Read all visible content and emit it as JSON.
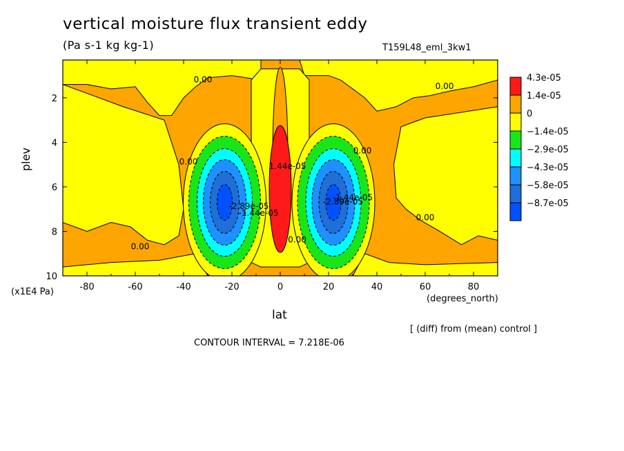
{
  "chart_data": {
    "type": "heatmap",
    "title": "vertical moisture flux transient eddy",
    "subtitle": "(Pa s-1 kg kg-1)",
    "run_label": "T159L48_eml_3kw1",
    "xlabel": "lat",
    "x_unit": "(degrees_north)",
    "ylabel": "plev",
    "y_unit": "(x1E4 Pa)",
    "xlim": [
      -90,
      90
    ],
    "ylim": [
      10,
      0.3
    ],
    "y_inverted": true,
    "x_ticks": [
      -80,
      -60,
      -40,
      -20,
      0,
      20,
      40,
      60,
      80
    ],
    "x_tick_labels": [
      "-80",
      "-60",
      "-40",
      "-20",
      "0",
      "20",
      "40",
      "60",
      "80"
    ],
    "y_ticks": [
      2,
      4,
      6,
      8,
      10
    ],
    "y_tick_labels": [
      "2",
      "4",
      "6",
      "8",
      "10"
    ],
    "contour_interval": 7.218e-06,
    "contour_interval_text": "CONTOUR INTERVAL = 7.218E-06",
    "note": "[ (diff) from (mean) control ]",
    "legend": {
      "placement": "right",
      "levels": [
        {
          "label": "4.3e-05",
          "value": 4.3e-05,
          "color": "#ff1a1a"
        },
        {
          "label": "1.4e-05",
          "value": 1.4e-05,
          "color": "#ffa500"
        },
        {
          "label": "0",
          "value": 0,
          "color": "#ffff00"
        },
        {
          "label": "−1.4e-05",
          "value": -1.4e-05,
          "color": "#19e619"
        },
        {
          "label": "−2.9e-05",
          "value": -2.9e-05,
          "color": "#00ffff"
        },
        {
          "label": "−4.3e-05",
          "value": -4.3e-05,
          "color": "#1e90ff"
        },
        {
          "label": "−5.8e-05",
          "value": -5.8e-05,
          "color": "#1e6fd8"
        },
        {
          "label": "−8.7e-05",
          "value": -8.7e-05,
          "color": "#0052ff"
        }
      ]
    },
    "features": [
      {
        "kind": "max",
        "lat": 0,
        "plev": 5.5,
        "value": 4.3e-05
      },
      {
        "kind": "min",
        "lat": -23,
        "plev": 7.0,
        "value": -8.7e-05
      },
      {
        "kind": "min",
        "lat": 22,
        "plev": 7.0,
        "value": -8.7e-05
      }
    ],
    "contour_labels": [
      {
        "text": "0.00",
        "lat": -32,
        "plev": 1.3
      },
      {
        "text": "0.00",
        "lat": 68,
        "plev": 1.6
      },
      {
        "text": "0.00",
        "lat": -38,
        "plev": 5.0
      },
      {
        "text": "0.00",
        "lat": 34,
        "plev": 4.5
      },
      {
        "text": "0.00",
        "lat": 60,
        "plev": 7.5
      },
      {
        "text": "0.00",
        "lat": -58,
        "plev": 8.8
      },
      {
        "text": "0.00",
        "lat": 7,
        "plev": 8.5
      },
      {
        "text": "1.44e-05",
        "lat": 3,
        "plev": 5.2
      },
      {
        "text": "-2.89e-05",
        "lat": -13,
        "plev": 7.0
      },
      {
        "text": "-1.44e-05",
        "lat": -9,
        "plev": 7.3
      },
      {
        "text": "-2.89e-05",
        "lat": 26,
        "plev": 6.8
      },
      {
        "text": "-1.44e-05",
        "lat": 30,
        "plev": 6.6
      }
    ]
  }
}
